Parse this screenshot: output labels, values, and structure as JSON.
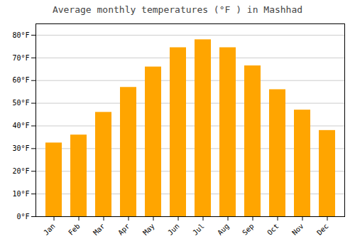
{
  "chart_data": {
    "type": "bar",
    "title": "Average monthly temperatures (°F ) in Mashhad",
    "categories": [
      "Jan",
      "Feb",
      "Mar",
      "Apr",
      "May",
      "Jun",
      "Jul",
      "Aug",
      "Sep",
      "Oct",
      "Nov",
      "Dec"
    ],
    "values": [
      32.5,
      36.0,
      46.0,
      57.0,
      66.0,
      74.5,
      78.0,
      74.5,
      66.5,
      56.0,
      47.0,
      38.0
    ],
    "color": "#FFA500",
    "ylim": [
      0,
      85
    ],
    "yticks": [
      {
        "value": 0,
        "label": "0°F"
      },
      {
        "value": 10,
        "label": "10°F"
      },
      {
        "value": 20,
        "label": "20°F"
      },
      {
        "value": 30,
        "label": "30°F"
      },
      {
        "value": 40,
        "label": "40°F"
      },
      {
        "value": 50,
        "label": "50°F"
      },
      {
        "value": 60,
        "label": "60°F"
      },
      {
        "value": 70,
        "label": "70°F"
      },
      {
        "value": 80,
        "label": "80°F"
      }
    ],
    "grid": true
  }
}
